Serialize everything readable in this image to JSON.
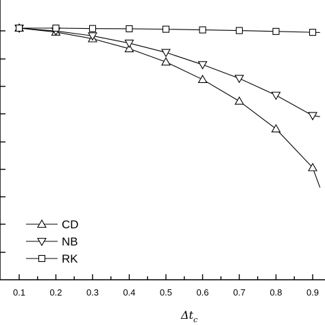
{
  "chart_data": {
    "type": "line",
    "xlabel": "Δt_c",
    "xlabel_main": "Δt",
    "xlabel_sub": "c",
    "ylabel": "",
    "title": "",
    "x_ticks": [
      "0.1",
      "0.2",
      "0.3",
      "0.4",
      "0.5",
      "0.6",
      "0.7",
      "0.8",
      "0.9"
    ],
    "xlim": [
      0.0,
      0.92
    ],
    "ylim": [
      -0.12,
      0.01
    ],
    "grid": false,
    "legend_position": "bottom-left",
    "x": [
      0.1,
      0.2,
      0.3,
      0.4,
      0.5,
      0.6,
      0.7,
      0.8,
      0.9
    ],
    "series": [
      {
        "name": "CD",
        "marker": "triangle-up",
        "values": [
          0.0,
          -0.0018,
          -0.0048,
          -0.0093,
          -0.0153,
          -0.0232,
          -0.033,
          -0.0455,
          -0.063
        ],
        "tail": [
          0.92,
          -0.072
        ]
      },
      {
        "name": "NB",
        "marker": "triangle-down",
        "values": [
          0.0,
          -0.0013,
          -0.0035,
          -0.0068,
          -0.011,
          -0.0165,
          -0.0227,
          -0.0303,
          -0.0395
        ],
        "tail": [
          0.92,
          -0.04
        ]
      },
      {
        "name": "RK",
        "marker": "square",
        "values": [
          0.0,
          0.0,
          -0.0002,
          -0.0003,
          -0.0005,
          -0.0008,
          -0.0011,
          -0.0015,
          -0.0019
        ],
        "tail": [
          0.92,
          -0.002
        ]
      }
    ]
  }
}
